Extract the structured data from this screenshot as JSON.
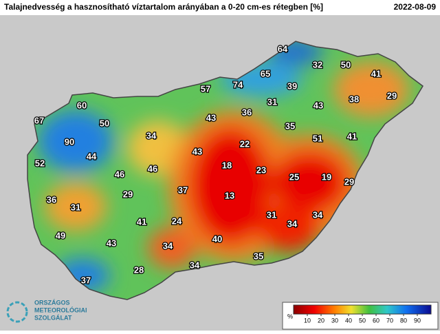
{
  "header": {
    "title": "Talajnedvesség a hasznosítható víztartalom arányában a 0-20 cm-es rétegben [%]",
    "date": "2022-08-09"
  },
  "stations": [
    67,
    60,
    50,
    90,
    44,
    52,
    34,
    46,
    46,
    36,
    31,
    29,
    41,
    49,
    43,
    37,
    28,
    34,
    24,
    37,
    43,
    43,
    57,
    74,
    36,
    65,
    64,
    32,
    50,
    41,
    29,
    39,
    31,
    43,
    38,
    35,
    22,
    18,
    23,
    13,
    25,
    19,
    29,
    51,
    41,
    31,
    34,
    34,
    40,
    34,
    35
  ],
  "legend": {
    "unit": "%",
    "ticks": [
      10,
      20,
      30,
      40,
      50,
      60,
      70,
      80,
      90
    ]
  },
  "logo": {
    "line1": "ORSZÁGOS",
    "line2": "METEOROLÓGIAI",
    "line3": "SZOLGÁLAT"
  }
}
